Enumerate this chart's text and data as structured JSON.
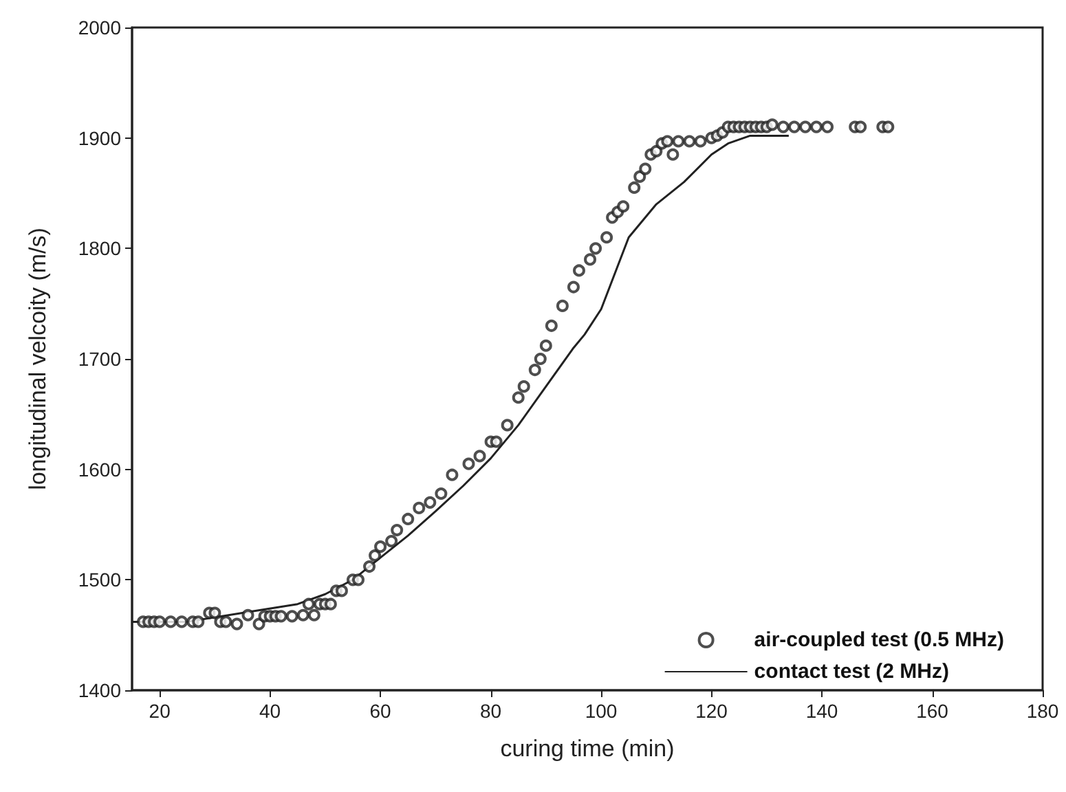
{
  "chart_data": {
    "type": "scatter",
    "xlabel": "curing time (min)",
    "ylabel": "longitudinal velcoity (m/s)",
    "xlim": [
      15,
      180
    ],
    "ylim": [
      1400,
      2000
    ],
    "xticks": [
      20,
      40,
      60,
      80,
      100,
      120,
      140,
      160,
      180
    ],
    "yticks": [
      1400,
      1500,
      1600,
      1700,
      1800,
      1900,
      2000
    ],
    "grid": false,
    "legend": "bottom right",
    "series": [
      {
        "name": "air-coupled test (0.5 MHz)",
        "marker": "circle",
        "color": "#222222",
        "x": [
          17,
          18,
          19,
          20,
          22,
          24,
          26,
          27,
          29,
          30,
          31,
          32,
          34,
          36,
          38,
          39,
          40,
          41,
          42,
          44,
          46,
          47,
          48,
          49,
          50,
          51,
          52,
          53,
          55,
          56,
          58,
          59,
          60,
          62,
          63,
          65,
          67,
          69,
          71,
          73,
          76,
          78,
          80,
          81,
          83,
          85,
          86,
          88,
          89,
          90,
          91,
          93,
          95,
          96,
          98,
          99,
          101,
          102,
          103,
          104,
          106,
          107,
          108,
          109,
          110,
          111,
          112,
          113,
          114,
          116,
          118,
          120,
          121,
          122,
          123,
          124,
          125,
          126,
          127,
          128,
          129,
          130,
          131,
          133,
          135,
          137,
          139,
          141,
          146,
          147,
          151,
          152
        ],
        "values": [
          1462,
          1462,
          1462,
          1462,
          1462,
          1462,
          1462,
          1462,
          1470,
          1470,
          1462,
          1462,
          1460,
          1468,
          1460,
          1467,
          1467,
          1467,
          1467,
          1467,
          1468,
          1478,
          1468,
          1478,
          1478,
          1478,
          1490,
          1490,
          1500,
          1500,
          1512,
          1522,
          1530,
          1535,
          1545,
          1555,
          1565,
          1570,
          1578,
          1595,
          1605,
          1612,
          1625,
          1625,
          1640,
          1665,
          1675,
          1690,
          1700,
          1712,
          1730,
          1748,
          1765,
          1780,
          1790,
          1800,
          1810,
          1828,
          1833,
          1838,
          1855,
          1865,
          1872,
          1885,
          1888,
          1895,
          1897,
          1885,
          1897,
          1897,
          1897,
          1900,
          1902,
          1905,
          1910,
          1910,
          1910,
          1910,
          1910,
          1910,
          1910,
          1910,
          1912,
          1910,
          1910,
          1910,
          1910,
          1910,
          1910,
          1910,
          1910,
          1910
        ]
      },
      {
        "name": "contact test (2 MHz)",
        "type": "line",
        "marker": "none",
        "line_style": "solid",
        "color": "#222222",
        "x": [
          15,
          25,
          35,
          45,
          50,
          55,
          60,
          65,
          70,
          75,
          80,
          85,
          90,
          95,
          97,
          100,
          105,
          110,
          115,
          120,
          123,
          127,
          134
        ],
        "values": [
          1462,
          1462,
          1470,
          1478,
          1487,
          1500,
          1520,
          1540,
          1562,
          1585,
          1610,
          1640,
          1675,
          1710,
          1722,
          1745,
          1810,
          1840,
          1860,
          1885,
          1895,
          1902,
          1902
        ]
      }
    ]
  }
}
